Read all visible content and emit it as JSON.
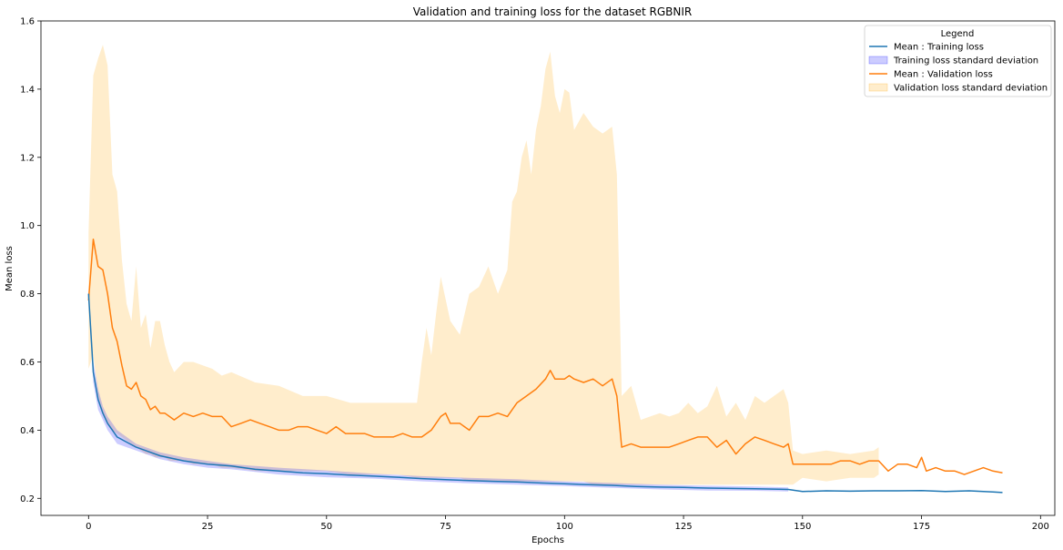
{
  "chart_data": {
    "type": "line",
    "title": "Validation and training loss for the dataset RGBNIR",
    "xlabel": "Epochs",
    "ylabel": "Mean loss",
    "xlim": [
      -10,
      203
    ],
    "ylim": [
      0.15,
      1.6
    ],
    "x_ticks": [
      0,
      25,
      50,
      75,
      100,
      125,
      150,
      175,
      200
    ],
    "y_ticks": [
      0.2,
      0.4,
      0.6,
      0.8,
      1.0,
      1.2,
      1.4,
      1.6
    ],
    "legend_title": "Legend",
    "legend_position": "top-right",
    "grid": false,
    "colors": {
      "train_line": "#1f77b4",
      "train_band": "#0000ff",
      "val_line": "#ff7f0e",
      "val_band": "#ffa500"
    },
    "legend": [
      {
        "label": "Mean : Training loss",
        "kind": "line",
        "color": "#1f77b4"
      },
      {
        "label": "Training loss standard deviation",
        "kind": "patch",
        "color": "#0000ff"
      },
      {
        "label": "Mean : Validation loss",
        "kind": "line",
        "color": "#ff7f0e"
      },
      {
        "label": "Validation loss standard deviation",
        "kind": "patch",
        "color": "#ffa500"
      }
    ],
    "series": [
      {
        "name": "Mean : Training loss",
        "x": [
          0,
          1,
          2,
          3,
          4,
          5,
          6,
          8,
          10,
          12,
          15,
          20,
          25,
          30,
          35,
          40,
          45,
          50,
          55,
          60,
          65,
          70,
          75,
          80,
          85,
          90,
          95,
          100,
          105,
          110,
          115,
          120,
          125,
          130,
          135,
          140,
          145,
          147,
          150,
          155,
          160,
          165,
          170,
          175,
          180,
          185,
          190,
          192
        ],
        "values": [
          0.8,
          0.57,
          0.49,
          0.45,
          0.42,
          0.4,
          0.38,
          0.365,
          0.35,
          0.34,
          0.325,
          0.31,
          0.3,
          0.295,
          0.285,
          0.28,
          0.275,
          0.272,
          0.268,
          0.265,
          0.262,
          0.258,
          0.255,
          0.252,
          0.25,
          0.248,
          0.245,
          0.243,
          0.24,
          0.238,
          0.235,
          0.233,
          0.232,
          0.23,
          0.229,
          0.228,
          0.227,
          0.226,
          0.22,
          0.222,
          0.221,
          0.222,
          0.222,
          0.223,
          0.22,
          0.222,
          0.219,
          0.217
        ]
      },
      {
        "name": "Training loss standard deviation",
        "x": [
          0,
          1,
          2,
          3,
          4,
          5,
          6,
          8,
          10,
          12,
          15,
          20,
          25,
          30,
          40,
          50,
          60,
          70,
          80,
          90,
          100,
          110,
          120,
          130,
          140,
          147
        ],
        "upper": [
          0.81,
          0.6,
          0.52,
          0.47,
          0.44,
          0.42,
          0.4,
          0.38,
          0.36,
          0.35,
          0.335,
          0.32,
          0.31,
          0.3,
          0.29,
          0.282,
          0.272,
          0.265,
          0.26,
          0.256,
          0.25,
          0.245,
          0.24,
          0.237,
          0.235,
          0.232
        ],
        "lower": [
          0.78,
          0.54,
          0.46,
          0.43,
          0.4,
          0.38,
          0.36,
          0.35,
          0.34,
          0.33,
          0.315,
          0.3,
          0.29,
          0.285,
          0.27,
          0.262,
          0.258,
          0.25,
          0.244,
          0.24,
          0.236,
          0.231,
          0.226,
          0.223,
          0.222,
          0.22
        ]
      },
      {
        "name": "Mean : Validation loss",
        "x": [
          0,
          1,
          2,
          3,
          4,
          5,
          6,
          7,
          8,
          9,
          10,
          11,
          12,
          13,
          14,
          15,
          16,
          17,
          18,
          19,
          20,
          22,
          24,
          26,
          28,
          30,
          32,
          34,
          36,
          38,
          40,
          42,
          44,
          46,
          48,
          50,
          52,
          54,
          56,
          58,
          60,
          62,
          64,
          66,
          68,
          70,
          72,
          74,
          75,
          76,
          78,
          80,
          82,
          84,
          86,
          88,
          90,
          92,
          94,
          96,
          97,
          98,
          100,
          101,
          102,
          104,
          106,
          108,
          110,
          111,
          112,
          114,
          116,
          118,
          120,
          122,
          124,
          126,
          128,
          130,
          132,
          134,
          136,
          138,
          140,
          142,
          144,
          146,
          147,
          148,
          150,
          152,
          154,
          156,
          158,
          160,
          162,
          164,
          166,
          168,
          170,
          172,
          174,
          175,
          176,
          178,
          180,
          182,
          184,
          186,
          188,
          190,
          192
        ],
        "values": [
          0.78,
          0.96,
          0.88,
          0.87,
          0.8,
          0.7,
          0.66,
          0.59,
          0.53,
          0.52,
          0.54,
          0.5,
          0.49,
          0.46,
          0.47,
          0.45,
          0.45,
          0.44,
          0.43,
          0.44,
          0.45,
          0.44,
          0.45,
          0.44,
          0.44,
          0.41,
          0.42,
          0.43,
          0.42,
          0.41,
          0.4,
          0.4,
          0.41,
          0.41,
          0.4,
          0.39,
          0.41,
          0.39,
          0.39,
          0.39,
          0.38,
          0.38,
          0.38,
          0.39,
          0.38,
          0.38,
          0.4,
          0.44,
          0.45,
          0.42,
          0.42,
          0.4,
          0.44,
          0.44,
          0.45,
          0.44,
          0.48,
          0.5,
          0.52,
          0.55,
          0.575,
          0.55,
          0.55,
          0.56,
          0.55,
          0.54,
          0.55,
          0.53,
          0.55,
          0.5,
          0.35,
          0.36,
          0.35,
          0.35,
          0.35,
          0.35,
          0.36,
          0.37,
          0.38,
          0.38,
          0.35,
          0.37,
          0.33,
          0.36,
          0.38,
          0.37,
          0.36,
          0.35,
          0.36,
          0.3,
          0.3,
          0.3,
          0.3,
          0.3,
          0.31,
          0.31,
          0.3,
          0.31,
          0.31,
          0.28,
          0.3,
          0.3,
          0.29,
          0.32,
          0.28,
          0.29,
          0.28,
          0.28,
          0.27,
          0.28,
          0.29,
          0.28,
          0.275
        ]
      },
      {
        "name": "Validation loss standard deviation",
        "x": [
          0,
          1,
          2,
          3,
          4,
          5,
          6,
          7,
          8,
          9,
          10,
          11,
          12,
          13,
          14,
          15,
          16,
          17,
          18,
          20,
          22,
          24,
          26,
          28,
          30,
          35,
          40,
          45,
          50,
          55,
          60,
          65,
          69,
          70,
          71,
          72,
          73,
          74,
          76,
          78,
          80,
          82,
          84,
          86,
          88,
          89,
          90,
          91,
          92,
          93,
          94,
          95,
          96,
          97,
          98,
          99,
          100,
          101,
          102,
          104,
          106,
          108,
          110,
          111,
          112,
          114,
          116,
          118,
          120,
          122,
          124,
          126,
          128,
          130,
          132,
          134,
          136,
          138,
          140,
          142,
          144,
          146,
          147,
          148,
          150,
          155,
          160,
          165,
          166
        ],
        "upper": [
          0.98,
          1.44,
          1.49,
          1.53,
          1.47,
          1.15,
          1.1,
          0.9,
          0.77,
          0.72,
          0.88,
          0.7,
          0.74,
          0.64,
          0.72,
          0.72,
          0.65,
          0.6,
          0.57,
          0.6,
          0.6,
          0.59,
          0.58,
          0.56,
          0.57,
          0.54,
          0.53,
          0.5,
          0.5,
          0.48,
          0.48,
          0.48,
          0.48,
          0.6,
          0.7,
          0.62,
          0.74,
          0.85,
          0.72,
          0.68,
          0.8,
          0.82,
          0.88,
          0.8,
          0.87,
          1.07,
          1.1,
          1.2,
          1.25,
          1.15,
          1.28,
          1.35,
          1.46,
          1.51,
          1.38,
          1.33,
          1.4,
          1.39,
          1.28,
          1.33,
          1.29,
          1.27,
          1.29,
          1.15,
          0.5,
          0.53,
          0.43,
          0.44,
          0.45,
          0.44,
          0.45,
          0.48,
          0.45,
          0.47,
          0.53,
          0.44,
          0.48,
          0.43,
          0.5,
          0.48,
          0.5,
          0.52,
          0.48,
          0.34,
          0.33,
          0.34,
          0.33,
          0.34,
          0.35
        ],
        "lower": [
          0.58,
          0.62,
          0.5,
          0.45,
          0.42,
          0.4,
          0.39,
          0.38,
          0.37,
          0.36,
          0.35,
          0.34,
          0.33,
          0.33,
          0.32,
          0.32,
          0.32,
          0.31,
          0.31,
          0.31,
          0.3,
          0.3,
          0.3,
          0.29,
          0.29,
          0.28,
          0.28,
          0.28,
          0.28,
          0.27,
          0.27,
          0.27,
          0.26,
          0.26,
          0.26,
          0.26,
          0.26,
          0.26,
          0.26,
          0.26,
          0.25,
          0.25,
          0.25,
          0.25,
          0.25,
          0.25,
          0.25,
          0.25,
          0.25,
          0.25,
          0.25,
          0.25,
          0.25,
          0.25,
          0.25,
          0.25,
          0.25,
          0.25,
          0.25,
          0.25,
          0.24,
          0.24,
          0.24,
          0.24,
          0.24,
          0.24,
          0.24,
          0.24,
          0.24,
          0.24,
          0.24,
          0.24,
          0.24,
          0.24,
          0.24,
          0.24,
          0.24,
          0.24,
          0.24,
          0.24,
          0.24,
          0.24,
          0.24,
          0.24,
          0.26,
          0.25,
          0.26,
          0.26,
          0.27
        ]
      }
    ]
  }
}
